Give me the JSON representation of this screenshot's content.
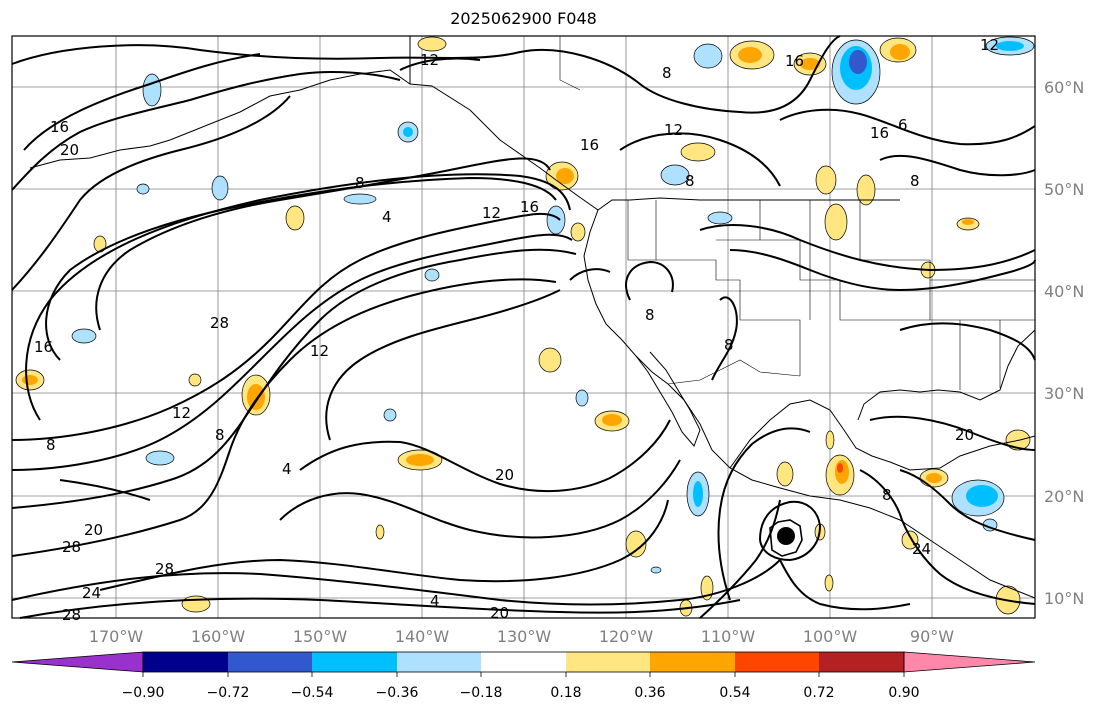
{
  "title": "2025062900 F048",
  "lon_ticks": [
    "170°W",
    "160°W",
    "150°W",
    "140°W",
    "130°W",
    "120°W",
    "110°W",
    "100°W",
    "90°W"
  ],
  "lat_ticks": [
    "60°N",
    "50°N",
    "40°N",
    "30°N",
    "20°N",
    "10°N"
  ],
  "contour_labels": [
    "12",
    "8",
    "16",
    "20",
    "16",
    "12",
    "8",
    "12",
    "16",
    "6",
    "8",
    "8",
    "16",
    "12",
    "16",
    "4",
    "28",
    "16",
    "12",
    "12",
    "8",
    "8",
    "4",
    "20",
    "20",
    "20",
    "28",
    "24",
    "28",
    "8",
    "4",
    "20",
    "24",
    "28",
    "8",
    "8"
  ],
  "colorbar": {
    "ticks": [
      "−0.90",
      "−0.72",
      "−0.54",
      "−0.36",
      "−0.18",
      "0.18",
      "0.36",
      "0.54",
      "0.72",
      "0.90"
    ],
    "colors": [
      "#9932cc",
      "#00008b",
      "#3158cd",
      "#00bfff",
      "#aee0ff",
      "#ffffff",
      "#ffe680",
      "#ffa500",
      "#ff4500",
      "#b22222",
      "#ff88aa"
    ]
  }
}
